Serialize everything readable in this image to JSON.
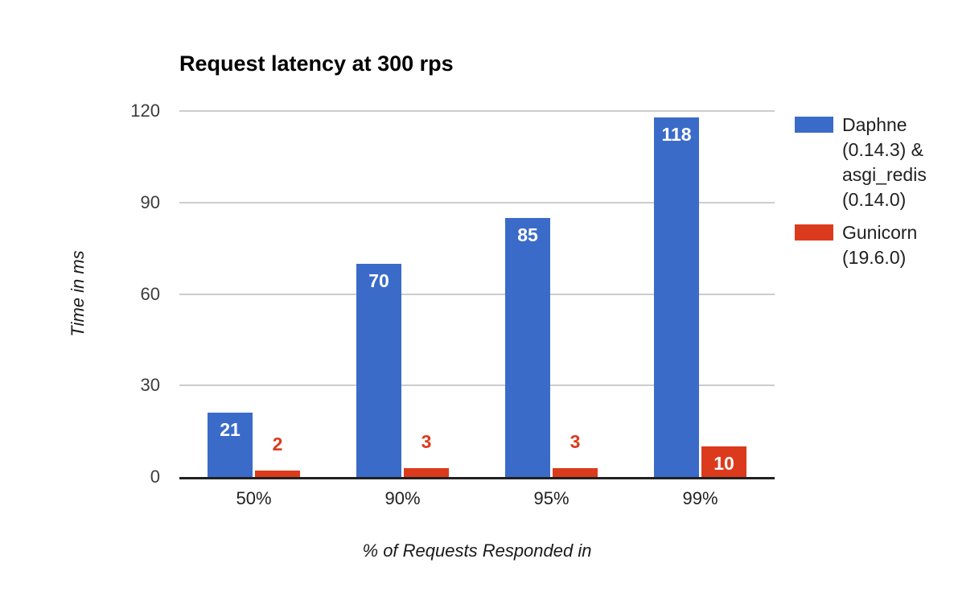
{
  "chart_data": {
    "type": "bar",
    "title": "Request latency at 300 rps",
    "xlabel": "% of Requests Responded in",
    "ylabel": "Time in ms",
    "categories": [
      "50%",
      "90%",
      "95%",
      "99%"
    ],
    "series": [
      {
        "name": "Daphne (0.14.3) & asgi_redis (0.14.0)",
        "color": "#3B6BC9",
        "values": [
          21,
          70,
          85,
          118
        ]
      },
      {
        "name": "Gunicorn (19.6.0)",
        "color": "#DB3B1C",
        "values": [
          2,
          3,
          3,
          10
        ]
      }
    ],
    "ylim": [
      0,
      120
    ],
    "yticks": [
      0,
      30,
      60,
      90,
      120
    ],
    "grid": true,
    "legend_position": "right",
    "data_labels": true,
    "inside_label_color": "#ffffff"
  }
}
